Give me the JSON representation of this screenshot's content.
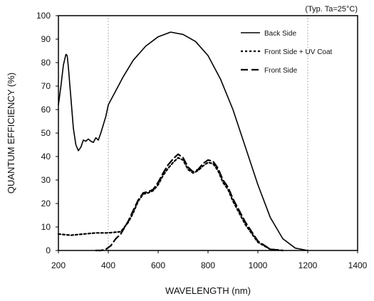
{
  "chart_data": {
    "type": "line",
    "title": "",
    "annotation": "(Typ. Ta=25°C)",
    "xlabel": "WAVELENGTH (nm)",
    "ylabel": "QUANTUM EFFICIENCY (%)",
    "xlim": [
      200,
      1400
    ],
    "ylim": [
      0,
      100
    ],
    "x_ticks": [
      200,
      400,
      600,
      800,
      1000,
      1200,
      1400
    ],
    "x_tick_labels": [
      "200",
      "400",
      "600",
      "800",
      "1000",
      "1200",
      "1400"
    ],
    "y_ticks": [
      0,
      10,
      20,
      30,
      40,
      50,
      60,
      70,
      80,
      90,
      100
    ],
    "y_tick_labels": [
      "0",
      "10",
      "20",
      "30",
      "40",
      "50",
      "60",
      "70",
      "80",
      "90",
      "100"
    ],
    "x_gridlines": [
      400,
      1200
    ],
    "grid_style": "dotted",
    "legend_position": "top-right",
    "series": [
      {
        "name": "Back Side",
        "style": "solid",
        "color": "#000000",
        "points": [
          [
            200,
            62
          ],
          [
            210,
            70
          ],
          [
            220,
            79
          ],
          [
            230,
            83.5
          ],
          [
            235,
            83
          ],
          [
            240,
            78
          ],
          [
            250,
            65
          ],
          [
            260,
            52
          ],
          [
            270,
            45
          ],
          [
            280,
            42.5
          ],
          [
            290,
            44
          ],
          [
            300,
            47
          ],
          [
            310,
            46.5
          ],
          [
            320,
            47.5
          ],
          [
            330,
            46.5
          ],
          [
            340,
            46
          ],
          [
            350,
            48
          ],
          [
            360,
            47
          ],
          [
            370,
            50
          ],
          [
            390,
            57
          ],
          [
            400,
            62
          ],
          [
            430,
            68
          ],
          [
            460,
            74
          ],
          [
            500,
            81
          ],
          [
            550,
            87
          ],
          [
            600,
            91
          ],
          [
            650,
            93
          ],
          [
            700,
            92
          ],
          [
            750,
            89
          ],
          [
            800,
            83
          ],
          [
            850,
            73
          ],
          [
            900,
            60
          ],
          [
            950,
            44
          ],
          [
            1000,
            28
          ],
          [
            1050,
            14
          ],
          [
            1100,
            5
          ],
          [
            1150,
            1
          ],
          [
            1200,
            0
          ]
        ]
      },
      {
        "name": "Front Side + UV Coat",
        "style": "dotted",
        "color": "#000000",
        "points": [
          [
            200,
            7
          ],
          [
            250,
            6.5
          ],
          [
            300,
            7
          ],
          [
            350,
            7.5
          ],
          [
            400,
            7.5
          ],
          [
            450,
            8
          ],
          [
            480,
            12
          ],
          [
            500,
            16
          ],
          [
            520,
            21
          ],
          [
            540,
            24
          ],
          [
            560,
            24.5
          ],
          [
            580,
            25.5
          ],
          [
            600,
            28
          ],
          [
            620,
            32
          ],
          [
            640,
            35
          ],
          [
            660,
            37.5
          ],
          [
            680,
            39.5
          ],
          [
            700,
            38.5
          ],
          [
            720,
            34.5
          ],
          [
            740,
            33
          ],
          [
            760,
            34
          ],
          [
            780,
            36
          ],
          [
            800,
            37.5
          ],
          [
            820,
            37
          ],
          [
            840,
            34
          ],
          [
            860,
            29
          ],
          [
            880,
            26
          ],
          [
            900,
            21
          ],
          [
            950,
            11
          ],
          [
            1000,
            3.5
          ],
          [
            1050,
            0.5
          ],
          [
            1100,
            0
          ]
        ]
      },
      {
        "name": "Front Side",
        "style": "dashed",
        "color": "#000000",
        "points": [
          [
            350,
            0
          ],
          [
            370,
            0
          ],
          [
            390,
            0.5
          ],
          [
            410,
            2
          ],
          [
            430,
            5
          ],
          [
            450,
            7
          ],
          [
            480,
            12.5
          ],
          [
            500,
            17
          ],
          [
            520,
            21.5
          ],
          [
            540,
            24.5
          ],
          [
            560,
            25
          ],
          [
            580,
            26
          ],
          [
            600,
            29
          ],
          [
            620,
            33
          ],
          [
            640,
            36.5
          ],
          [
            660,
            39
          ],
          [
            680,
            41
          ],
          [
            700,
            39.5
          ],
          [
            720,
            35.5
          ],
          [
            740,
            33.5
          ],
          [
            760,
            34.5
          ],
          [
            780,
            37
          ],
          [
            800,
            38.5
          ],
          [
            820,
            38
          ],
          [
            840,
            35
          ],
          [
            860,
            30
          ],
          [
            880,
            27
          ],
          [
            900,
            22
          ],
          [
            950,
            12
          ],
          [
            1000,
            4
          ],
          [
            1050,
            0.5
          ],
          [
            1100,
            0
          ]
        ]
      }
    ]
  }
}
